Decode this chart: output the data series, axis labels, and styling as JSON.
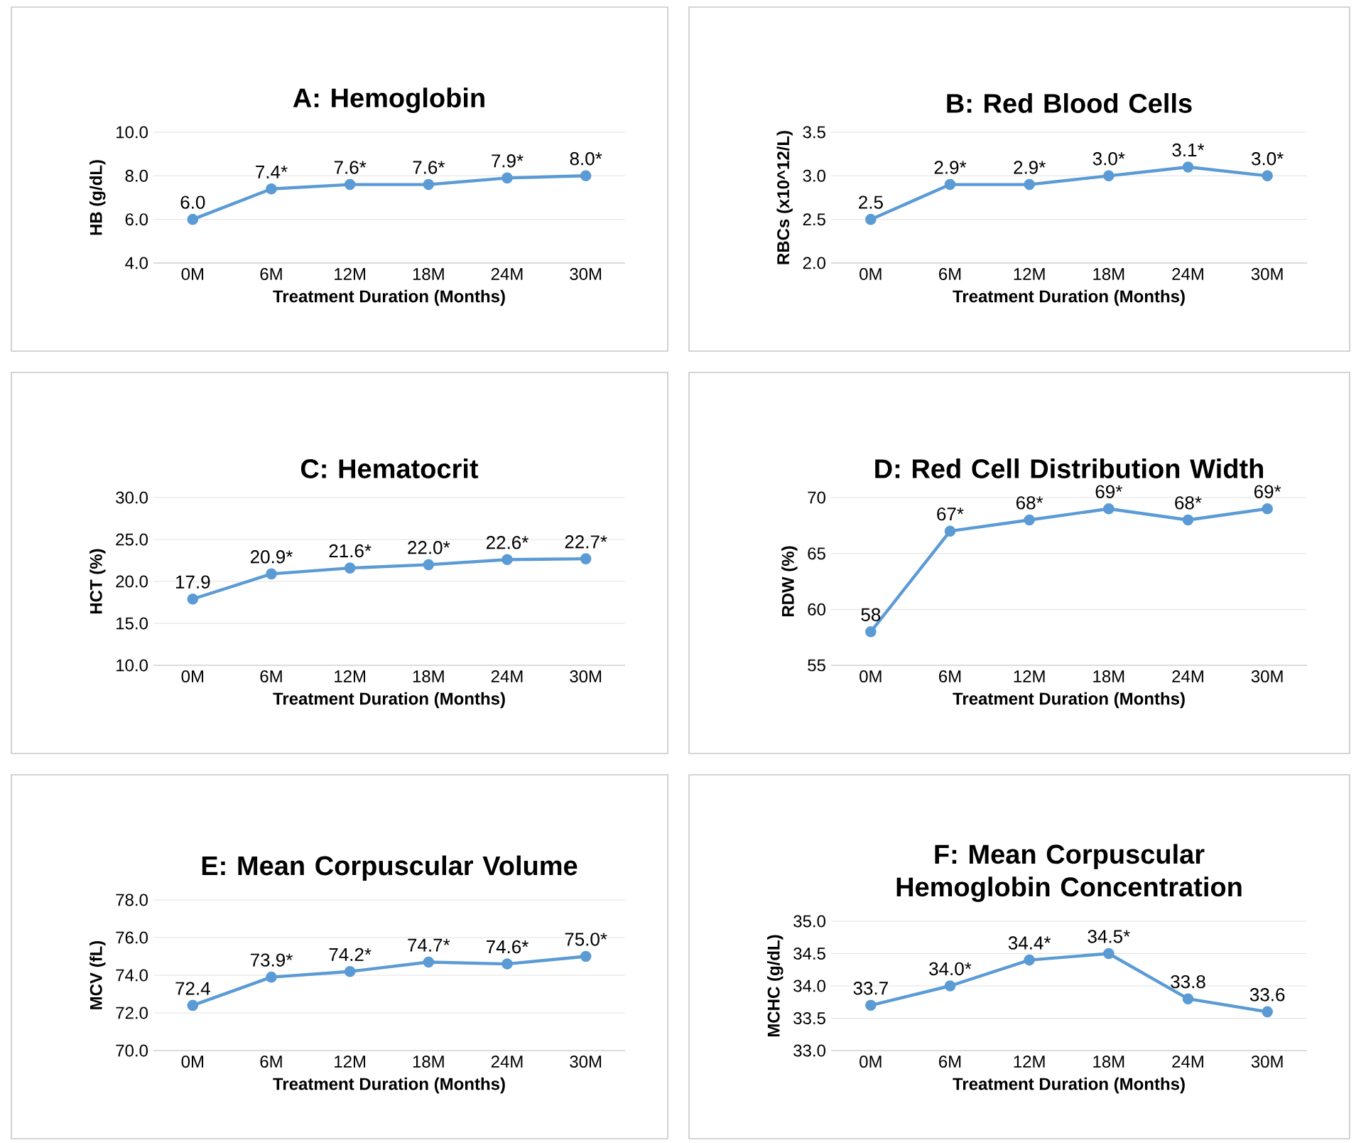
{
  "chart_data": [
    {
      "type": "line",
      "title": "A: Hemoglobin",
      "xlabel": "Treatment Duration (Months)",
      "ylabel": "HB (g/dL)",
      "categories": [
        "0M",
        "6M",
        "12M",
        "18M",
        "24M",
        "30M"
      ],
      "series": [
        {
          "color": "#5b9bd5",
          "values": [
            6.0,
            7.4,
            7.6,
            7.6,
            7.9,
            8.0
          ],
          "value_labels": [
            "6.0",
            "7.4*",
            "7.6*",
            "7.6*",
            "7.9*",
            "8.0*"
          ]
        }
      ],
      "ylim": [
        4,
        10
      ],
      "yticks": [
        {
          "value": 4,
          "label": "4.0"
        },
        {
          "value": 6,
          "label": "6.0"
        },
        {
          "value": 8,
          "label": "8.0"
        },
        {
          "value": 10,
          "label": "10.0"
        }
      ],
      "grid": "y",
      "marker": "circle"
    },
    {
      "type": "line",
      "title": "B: Red Blood Cells",
      "xlabel": "Treatment Duration (Months)",
      "ylabel": "RBCs (x10^12/L)",
      "categories": [
        "0M",
        "6M",
        "12M",
        "18M",
        "24M",
        "30M"
      ],
      "series": [
        {
          "color": "#5b9bd5",
          "values": [
            2.5,
            2.9,
            2.9,
            3.0,
            3.1,
            3.0
          ],
          "value_labels": [
            "2.5",
            "2.9*",
            "2.9*",
            "3.0*",
            "3.1*",
            "3.0*"
          ]
        }
      ],
      "ylim": [
        2,
        3.5
      ],
      "yticks": [
        {
          "value": 2,
          "label": "2.0"
        },
        {
          "value": 2.5,
          "label": "2.5"
        },
        {
          "value": 3,
          "label": "3.0"
        },
        {
          "value": 3.5,
          "label": "3.5"
        }
      ],
      "grid": "y",
      "marker": "circle"
    },
    {
      "type": "line",
      "title": "C: Hematocrit",
      "xlabel": "Treatment Duration (Months)",
      "ylabel": "HCT (%)",
      "categories": [
        "0M",
        "6M",
        "12M",
        "18M",
        "24M",
        "30M"
      ],
      "series": [
        {
          "color": "#5b9bd5",
          "values": [
            17.9,
            20.9,
            21.6,
            22.0,
            22.6,
            22.7
          ],
          "value_labels": [
            "17.9",
            "20.9*",
            "21.6*",
            "22.0*",
            "22.6*",
            "22.7*"
          ]
        }
      ],
      "ylim": [
        10,
        30
      ],
      "yticks": [
        {
          "value": 10,
          "label": "10.0"
        },
        {
          "value": 15,
          "label": "15.0"
        },
        {
          "value": 20,
          "label": "20.0"
        },
        {
          "value": 25,
          "label": "25.0"
        },
        {
          "value": 30,
          "label": "30.0"
        }
      ],
      "grid": "y",
      "marker": "circle"
    },
    {
      "type": "line",
      "title": "D: Red Cell Distribution Width",
      "xlabel": "Treatment Duration (Months)",
      "ylabel": "RDW (%)",
      "categories": [
        "0M",
        "6M",
        "12M",
        "18M",
        "24M",
        "30M"
      ],
      "series": [
        {
          "color": "#5b9bd5",
          "values": [
            58,
            67,
            68,
            69,
            68,
            69
          ],
          "value_labels": [
            "58",
            "67*",
            "68*",
            "69*",
            "68*",
            "69*"
          ]
        }
      ],
      "ylim": [
        55,
        70
      ],
      "yticks": [
        55,
        60,
        65,
        70
      ],
      "grid": "y",
      "marker": "circle"
    },
    {
      "type": "line",
      "title": "E: Mean Corpuscular Volume",
      "xlabel": "Treatment Duration (Months)",
      "ylabel": "MCV (fL)",
      "categories": [
        "0M",
        "6M",
        "12M",
        "18M",
        "24M",
        "30M"
      ],
      "series": [
        {
          "color": "#5b9bd5",
          "values": [
            72.4,
            73.9,
            74.2,
            74.7,
            74.6,
            75.0
          ],
          "value_labels": [
            "72.4",
            "73.9*",
            "74.2*",
            "74.7*",
            "74.6*",
            "75.0*"
          ]
        }
      ],
      "ylim": [
        70,
        78
      ],
      "yticks": [
        {
          "value": 70,
          "label": "70.0"
        },
        {
          "value": 72,
          "label": "72.0"
        },
        {
          "value": 74,
          "label": "74.0"
        },
        {
          "value": 76,
          "label": "76.0"
        },
        {
          "value": 78,
          "label": "78.0"
        }
      ],
      "grid": "y",
      "marker": "circle"
    },
    {
      "type": "line",
      "title": "F: Mean Corpuscular Hemoglobin Concentration",
      "xlabel": "Treatment Duration (Months)",
      "ylabel": "MCHC (g/dL)",
      "categories": [
        "0M",
        "6M",
        "12M",
        "18M",
        "24M",
        "30M"
      ],
      "series": [
        {
          "color": "#5b9bd5",
          "values": [
            33.7,
            34.0,
            34.4,
            34.5,
            33.8,
            33.6
          ],
          "value_labels": [
            "33.7",
            "34.0*",
            "34.4*",
            "34.5*",
            "33.8",
            "33.6"
          ]
        }
      ],
      "ylim": [
        33,
        35
      ],
      "yticks": [
        {
          "value": 33,
          "label": "33.0"
        },
        {
          "value": 33.5,
          "label": "33.5"
        },
        {
          "value": 34,
          "label": "34.0"
        },
        {
          "value": 34.5,
          "label": "34.5"
        },
        {
          "value": 35,
          "label": "35.0"
        }
      ],
      "grid": "y",
      "marker": "circle"
    }
  ]
}
